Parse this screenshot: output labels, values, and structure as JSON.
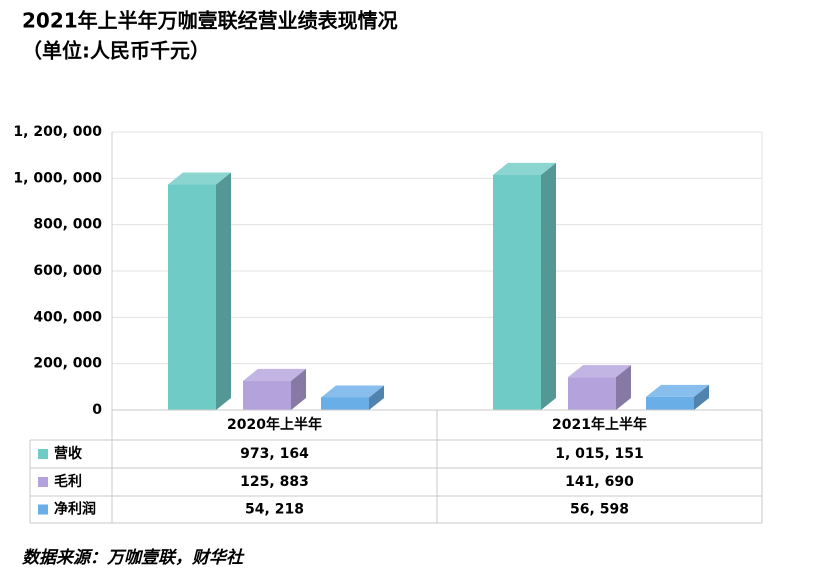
{
  "chart_data": {
    "type": "bar",
    "title": "2021年上半年万咖壹联经营业绩表现情况",
    "subtitle": "（单位:人民币千元）",
    "source": "数据来源：万咖壹联，财华社",
    "categories": [
      "2020年上半年",
      "2021年上半年"
    ],
    "series": [
      {
        "name": "营收",
        "color": "#6ecbc6",
        "values": [
          973164,
          1015151
        ],
        "value_labels": [
          "973, 164",
          "1, 015, 151"
        ]
      },
      {
        "name": "毛利",
        "color": "#b3a2dc",
        "values": [
          125883,
          141690
        ],
        "value_labels": [
          "125, 883",
          "141, 690"
        ]
      },
      {
        "name": "净利润",
        "color": "#6aaee8",
        "values": [
          54218,
          56598
        ],
        "value_labels": [
          "54, 218",
          "56, 598"
        ]
      }
    ],
    "ylim": [
      0,
      1200000
    ],
    "yticks": [
      0,
      {
        "value": 200000,
        "label": "200, 000"
      },
      {
        "value": 400000,
        "label": "400, 000"
      },
      {
        "value": 600000,
        "label": "600, 000"
      },
      {
        "value": 800000,
        "label": "800, 000"
      },
      {
        "value": 1000000,
        "label": "1, 000, 000"
      },
      {
        "value": 1200000,
        "label": "1, 200, 000"
      }
    ],
    "grid": true
  }
}
